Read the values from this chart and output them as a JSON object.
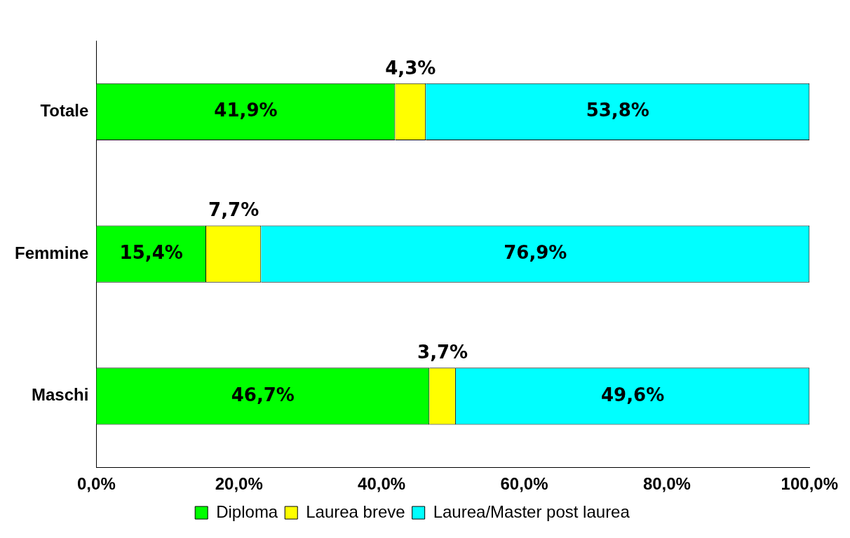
{
  "chart_data": {
    "type": "bar",
    "orientation": "horizontal",
    "stacked": true,
    "categories": [
      "Totale",
      "Femmine",
      "Maschi"
    ],
    "series": [
      {
        "name": "Diploma",
        "color": "#00ff00",
        "values": [
          41.9,
          15.4,
          46.7
        ],
        "value_labels": [
          "41,9%",
          "15,4%",
          "46,7%"
        ]
      },
      {
        "name": "Laurea breve",
        "color": "#ffff00",
        "values": [
          4.3,
          7.7,
          3.7
        ],
        "value_labels": [
          "4,3%",
          "7,7%",
          "3,7%"
        ]
      },
      {
        "name": "Laurea/Master post laurea",
        "color": "#00ffff",
        "values": [
          53.8,
          76.9,
          49.6
        ],
        "value_labels": [
          "53,8%",
          "76,9%",
          "49,6%"
        ]
      }
    ],
    "xlim": [
      0,
      100
    ],
    "xticks": [
      {
        "value": 0,
        "label": "0,0%"
      },
      {
        "value": 20,
        "label": "20,0%"
      },
      {
        "value": 40,
        "label": "40,0%"
      },
      {
        "value": 60,
        "label": "60,0%"
      },
      {
        "value": 80,
        "label": "80,0%"
      },
      {
        "value": 100,
        "label": "100,0%"
      }
    ],
    "grid": false,
    "legend": "bottom"
  }
}
